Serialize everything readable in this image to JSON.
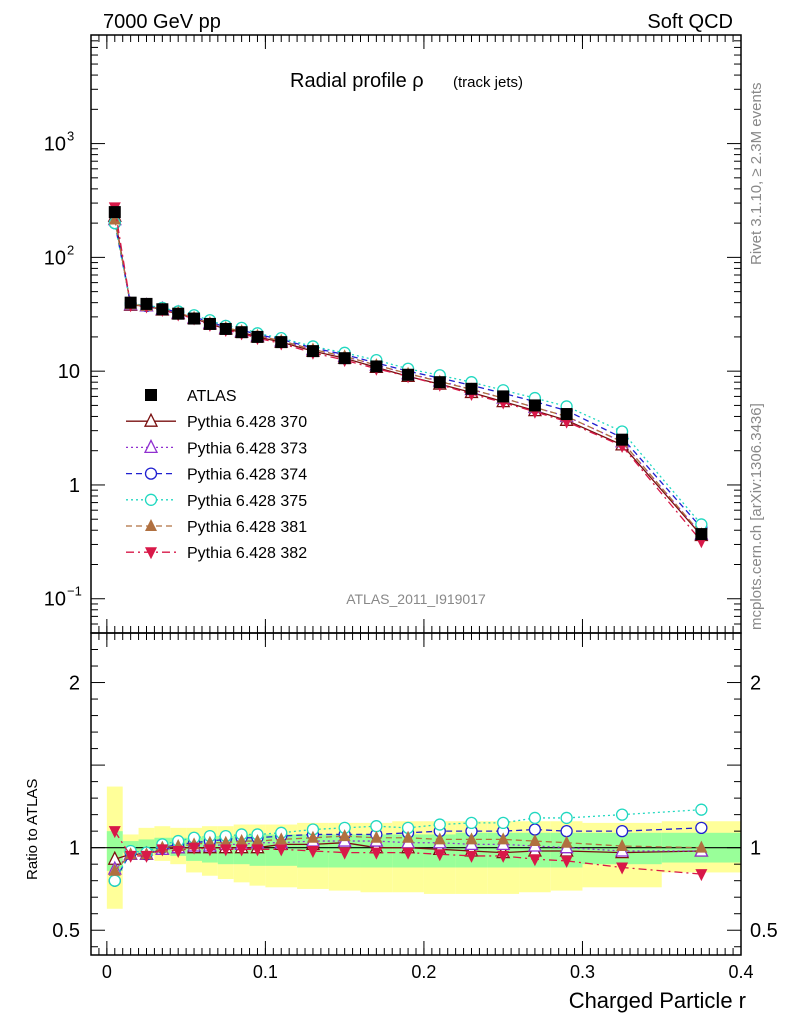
{
  "header": {
    "left": "7000 GeV pp",
    "right": "Soft QCD"
  },
  "title": {
    "main": "Radial profile ρ",
    "sub": "(track jets)"
  },
  "side_labels": {
    "rivet": "Rivet 3.1.10, ≥ 2.3M events",
    "mcplots": "mcplots.cern.ch [arXiv:1306.3436]"
  },
  "analysis_id": "ATLAS_2011_I919017",
  "xlabel": "Charged Particle r",
  "ratio_ylabel": "Ratio to ATLAS",
  "chart_data": [
    {
      "type": "scatter",
      "panel": "main",
      "yscale": "log",
      "xlim": [
        -0.01,
        0.4
      ],
      "ylim": [
        0.05,
        9000
      ],
      "x_ticks": [
        {
          "v": 0,
          "label": "0"
        },
        {
          "v": 0.1,
          "label": "0.1"
        },
        {
          "v": 0.2,
          "label": "0.2"
        },
        {
          "v": 0.3,
          "label": "0.3"
        },
        {
          "v": 0.4,
          "label": "0.4"
        }
      ],
      "y_ticks": [
        {
          "v": 0.1,
          "label": "10",
          "sup": "−1"
        },
        {
          "v": 1,
          "label": "1",
          "sup": ""
        },
        {
          "v": 10,
          "label": "10",
          "sup": ""
        },
        {
          "v": 100,
          "label": "10",
          "sup": "2"
        },
        {
          "v": 1000,
          "label": "10",
          "sup": "3"
        }
      ],
      "x": [
        0.005,
        0.015,
        0.025,
        0.035,
        0.045,
        0.055,
        0.065,
        0.075,
        0.085,
        0.095,
        0.11,
        0.13,
        0.15,
        0.17,
        0.19,
        0.21,
        0.23,
        0.25,
        0.27,
        0.29,
        0.325,
        0.375
      ],
      "series": [
        {
          "name": "ATLAS",
          "color": "#000000",
          "marker": "square-filled",
          "line": "none",
          "values": [
            250,
            40,
            39,
            35,
            32,
            29,
            26,
            23.5,
            22,
            20,
            18,
            15,
            13,
            11,
            9.3,
            8,
            7,
            6,
            5,
            4.2,
            2.5,
            0.37
          ]
        },
        {
          "name": "Pythia 6.428 370",
          "color": "#7a1010",
          "marker": "triangle-open",
          "line": "solid",
          "values": [
            230,
            38,
            37.5,
            34.5,
            32,
            29,
            26,
            23.5,
            22,
            20,
            18,
            15,
            13,
            10.8,
            9,
            7.7,
            6.5,
            5.4,
            4.5,
            3.7,
            2.25,
            0.36
          ]
        },
        {
          "name": "Pythia 6.428 373",
          "color": "#9030d0",
          "marker": "triangle-open",
          "line": "dotted",
          "values": [
            215,
            38.5,
            37.5,
            35,
            32.5,
            29.5,
            26.5,
            24,
            22.5,
            20.5,
            18.5,
            15.5,
            13.5,
            11.3,
            9.5,
            8.2,
            6.9,
            5.8,
            4.8,
            4,
            2.4,
            0.37
          ]
        },
        {
          "name": "Pythia 6.428 374",
          "color": "#2020d0",
          "marker": "circle-open",
          "line": "dashed",
          "values": [
            200,
            39,
            37.5,
            35.5,
            33,
            30,
            27,
            24.5,
            23,
            21,
            19,
            16,
            14,
            11.8,
            10,
            8.7,
            7.5,
            6.4,
            5.4,
            4.5,
            2.6,
            0.42
          ]
        },
        {
          "name": "Pythia 6.428 375",
          "color": "#20d8c0",
          "marker": "circle-open",
          "line": "dotted",
          "values": [
            200,
            39,
            38,
            36,
            33.5,
            31,
            28,
            25,
            24,
            21.5,
            19.5,
            16.5,
            14.5,
            12.5,
            10.5,
            9.2,
            8,
            6.8,
            5.8,
            4.9,
            2.95,
            0.45
          ]
        },
        {
          "name": "Pythia 6.428 381",
          "color": "#b07040",
          "marker": "triangle-filled",
          "line": "dashed",
          "values": [
            215,
            38.5,
            37.5,
            35,
            32.5,
            29.5,
            26.5,
            24,
            22.5,
            20.5,
            18.5,
            15.5,
            13.5,
            11.3,
            9.5,
            8.1,
            6.9,
            5.8,
            4.8,
            4,
            2.4,
            0.37
          ]
        },
        {
          "name": "Pythia 6.428 382",
          "color": "#d81848",
          "marker": "triangle-down-filled",
          "line": "dashdot",
          "values": [
            275,
            38,
            37,
            34.5,
            31.5,
            29,
            25.5,
            23,
            21.5,
            19.5,
            17.5,
            14.5,
            12.5,
            10.5,
            9,
            7.6,
            6.3,
            5.3,
            4.4,
            3.6,
            2.2,
            0.32
          ]
        }
      ]
    },
    {
      "type": "scatter",
      "panel": "ratio",
      "xlim": [
        -0.01,
        0.4
      ],
      "ylim": [
        0.35,
        2.3
      ],
      "ylabel": "Ratio to ATLAS",
      "y_ticks": [
        {
          "v": 0.5,
          "label": "0.5"
        },
        {
          "v": 1,
          "label": "1"
        },
        {
          "v": 2,
          "label": "2"
        }
      ],
      "bands": {
        "bins": [
          [
            0,
            0.01
          ],
          [
            0.01,
            0.02
          ],
          [
            0.02,
            0.03
          ],
          [
            0.03,
            0.04
          ],
          [
            0.04,
            0.05
          ],
          [
            0.05,
            0.06
          ],
          [
            0.06,
            0.07
          ],
          [
            0.07,
            0.08
          ],
          [
            0.08,
            0.09
          ],
          [
            0.09,
            0.1
          ],
          [
            0.1,
            0.12
          ],
          [
            0.12,
            0.14
          ],
          [
            0.14,
            0.16
          ],
          [
            0.16,
            0.18
          ],
          [
            0.18,
            0.2
          ],
          [
            0.2,
            0.22
          ],
          [
            0.22,
            0.24
          ],
          [
            0.24,
            0.26
          ],
          [
            0.26,
            0.28
          ],
          [
            0.28,
            0.3
          ],
          [
            0.3,
            0.35
          ],
          [
            0.35,
            0.4
          ]
        ],
        "yellow_lo": [
          0.63,
          0.95,
          0.95,
          0.92,
          0.9,
          0.85,
          0.83,
          0.81,
          0.79,
          0.77,
          0.76,
          0.75,
          0.74,
          0.73,
          0.73,
          0.72,
          0.72,
          0.72,
          0.73,
          0.74,
          0.76,
          0.85
        ],
        "yellow_hi": [
          1.37,
          1.08,
          1.12,
          1.13,
          1.12,
          1.12,
          1.13,
          1.13,
          1.14,
          1.14,
          1.14,
          1.15,
          1.15,
          1.15,
          1.16,
          1.16,
          1.16,
          1.16,
          1.16,
          1.16,
          1.15,
          1.16
        ],
        "green_lo": [
          0.86,
          0.97,
          0.97,
          0.96,
          0.95,
          0.92,
          0.91,
          0.9,
          0.9,
          0.89,
          0.89,
          0.88,
          0.88,
          0.88,
          0.88,
          0.88,
          0.88,
          0.88,
          0.88,
          0.88,
          0.9,
          0.91
        ],
        "green_hi": [
          1.1,
          1.04,
          1.05,
          1.06,
          1.06,
          1.06,
          1.07,
          1.07,
          1.08,
          1.08,
          1.08,
          1.08,
          1.08,
          1.08,
          1.08,
          1.08,
          1.09,
          1.09,
          1.09,
          1.09,
          1.09,
          1.09
        ]
      },
      "series": [
        {
          "name": "Pythia 6.428 370",
          "values": [
            0.93,
            0.96,
            0.96,
            0.99,
            1.0,
            1.0,
            1.0,
            1.0,
            1.0,
            1.0,
            1.02,
            1.02,
            1.03,
            1.0,
            1.0,
            0.99,
            0.98,
            0.97,
            0.98,
            0.98,
            0.97,
            0.98
          ]
        },
        {
          "name": "Pythia 6.428 373",
          "values": [
            0.87,
            0.96,
            0.96,
            0.99,
            1.0,
            1.01,
            1.01,
            1.02,
            1.02,
            1.03,
            1.03,
            1.04,
            1.04,
            1.04,
            1.03,
            1.03,
            1.02,
            1.02,
            1.01,
            1.0,
            0.98,
            0.98
          ]
        },
        {
          "name": "Pythia 6.428 374",
          "values": [
            0.8,
            0.97,
            0.96,
            1.0,
            1.02,
            1.03,
            1.04,
            1.05,
            1.06,
            1.06,
            1.07,
            1.08,
            1.08,
            1.08,
            1.09,
            1.1,
            1.1,
            1.1,
            1.11,
            1.1,
            1.1,
            1.12
          ]
        },
        {
          "name": "Pythia 6.428 375",
          "values": [
            0.8,
            0.98,
            0.97,
            1.02,
            1.04,
            1.06,
            1.07,
            1.07,
            1.08,
            1.08,
            1.09,
            1.11,
            1.12,
            1.13,
            1.12,
            1.14,
            1.15,
            1.15,
            1.18,
            1.18,
            1.2,
            1.23
          ]
        },
        {
          "name": "Pythia 6.428 381",
          "values": [
            0.86,
            0.96,
            0.96,
            1.0,
            1.01,
            1.02,
            1.03,
            1.03,
            1.04,
            1.04,
            1.05,
            1.06,
            1.07,
            1.06,
            1.06,
            1.05,
            1.05,
            1.05,
            1.04,
            1.03,
            1.01,
            1.0
          ]
        },
        {
          "name": "Pythia 6.428 382",
          "values": [
            1.1,
            0.95,
            0.95,
            0.99,
            0.98,
            1.0,
            0.99,
            0.99,
            0.99,
            0.99,
            0.99,
            0.98,
            0.97,
            0.97,
            0.97,
            0.96,
            0.95,
            0.95,
            0.93,
            0.92,
            0.88,
            0.84
          ]
        }
      ]
    }
  ]
}
